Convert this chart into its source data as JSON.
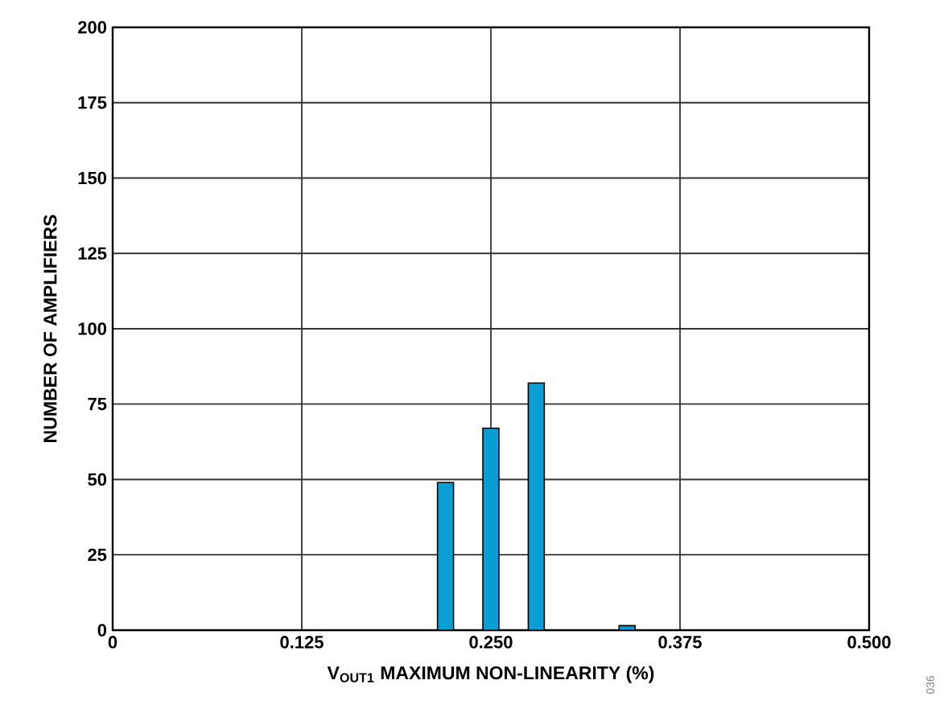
{
  "chart_data": {
    "type": "bar",
    "xlabel": "V$_{OUT1}$ MAXIMUM NON-LINEARITY (%)",
    "ylabel": "NUMBER OF AMPLIFIERS",
    "x": [
      0.22,
      0.25,
      0.28,
      0.34
    ],
    "values": [
      49,
      67,
      82,
      1.5
    ],
    "color": "#0a9fd4",
    "xlim": [
      0,
      0.5
    ],
    "xticks": [
      0,
      0.125,
      {
        "value": 0.25,
        "label": "0.250"
      },
      0.375,
      {
        "value": 0.5,
        "label": "0.500"
      }
    ],
    "ylim": [
      0,
      200
    ],
    "yticks": [
      0,
      25,
      50,
      75,
      100,
      125,
      150,
      175,
      200
    ],
    "grid": true,
    "annotations": [
      "036"
    ]
  }
}
